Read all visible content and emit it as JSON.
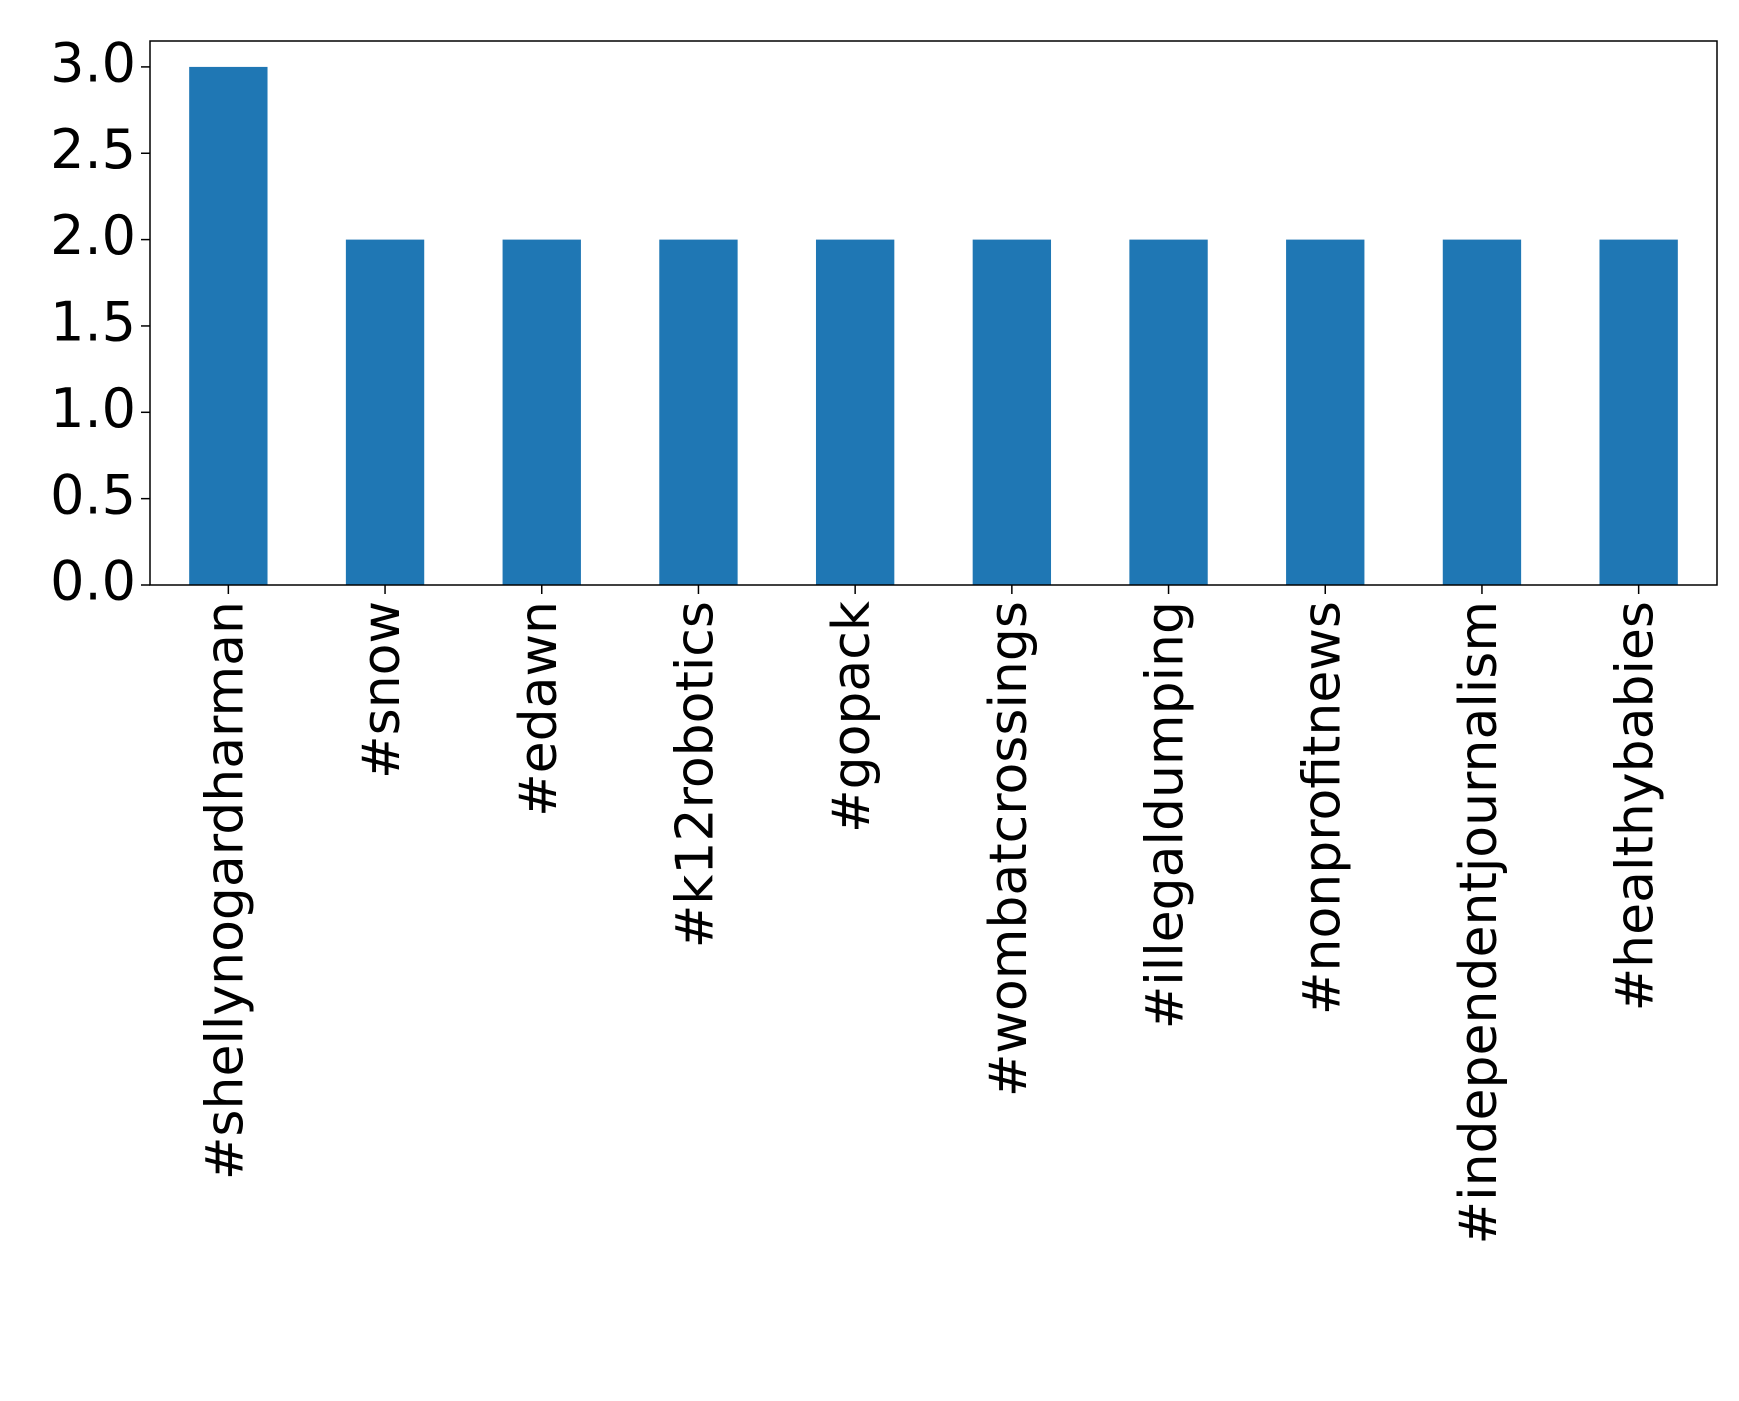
{
  "chart_data": {
    "type": "bar",
    "categories": [
      "#shellynogardharman",
      "#snow",
      "#edawn",
      "#k12robotics",
      "#gopack",
      "#wombatcrossings",
      "#illegaldumping",
      "#nonprofitnews",
      "#independentjournalism",
      "#healthybabies"
    ],
    "values": [
      3,
      2,
      2,
      2,
      2,
      2,
      2,
      2,
      2,
      2
    ],
    "color": "#1f77b4",
    "ylim": [
      0,
      3.15
    ],
    "yticks": [
      {
        "value": 0,
        "label": "0.0"
      },
      {
        "value": 0.5,
        "label": "0.5"
      },
      {
        "value": 1,
        "label": "1.0"
      },
      {
        "value": 1.5,
        "label": "1.5"
      },
      {
        "value": 2,
        "label": "2.0"
      },
      {
        "value": 2.5,
        "label": "2.5"
      },
      {
        "value": 3,
        "label": "3.0"
      }
    ],
    "grid": false
  }
}
